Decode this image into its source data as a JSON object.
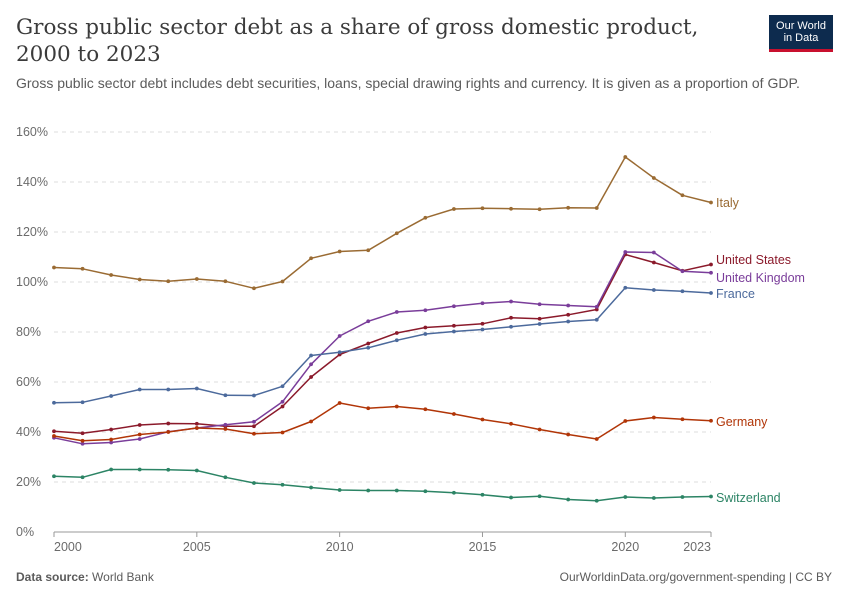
{
  "header": {
    "title": "Gross public sector debt as a share of gross domestic product, 2000 to 2023",
    "subtitle": "Gross public sector debt includes debt securities, loans, special drawing rights and currency. It is given as a proportion of GDP.",
    "logo_line1": "Our World",
    "logo_line2": "in Data"
  },
  "footer": {
    "source_label": "Data source:",
    "source_value": "World Bank",
    "url": "OurWorldinData.org/government-spending | CC BY"
  },
  "chart_data": {
    "type": "line",
    "title": "Gross public sector debt as a share of gross domestic product, 2000 to 2023",
    "xlim": [
      2000,
      2023
    ],
    "ylim": [
      0,
      160
    ],
    "x_ticks": [
      2000,
      2005,
      2010,
      2015,
      2020,
      2023
    ],
    "y_ticks": [
      0,
      20,
      40,
      60,
      80,
      100,
      120,
      140,
      160
    ],
    "y_tick_labels": [
      "0%",
      "20%",
      "40%",
      "60%",
      "80%",
      "100%",
      "120%",
      "140%",
      "160%"
    ],
    "grid": "horizontal dashed",
    "legend": "right-end labels",
    "x": [
      2000,
      2001,
      2002,
      2003,
      2004,
      2005,
      2006,
      2007,
      2008,
      2009,
      2010,
      2011,
      2012,
      2013,
      2014,
      2015,
      2016,
      2017,
      2018,
      2019,
      2020,
      2021,
      2022,
      2023
    ],
    "series": [
      {
        "name": "Italy",
        "color": "#9a6b33",
        "values": [
          105.8,
          105.3,
          102.8,
          101.0,
          100.3,
          101.2,
          100.3,
          97.5,
          100.2,
          109.5,
          112.2,
          112.7,
          119.5,
          125.7,
          129.2,
          129.5,
          129.3,
          129.1,
          129.7,
          129.6,
          150.0,
          141.6,
          134.7,
          131.8
        ]
      },
      {
        "name": "United States",
        "color": "#8b1a2b",
        "values": [
          40.3,
          39.5,
          41.0,
          42.8,
          43.4,
          43.3,
          42.3,
          42.3,
          50.2,
          62.0,
          71.0,
          75.4,
          79.6,
          81.8,
          82.5,
          83.3,
          85.7,
          85.3,
          86.9,
          89.0,
          111.0,
          107.8,
          104.5,
          107.0
        ]
      },
      {
        "name": "United Kingdom",
        "color": "#7a3d9a",
        "values": [
          37.7,
          35.3,
          35.8,
          37.2,
          40.1,
          41.6,
          42.9,
          44.1,
          52.1,
          67.1,
          78.4,
          84.3,
          88.0,
          88.7,
          90.3,
          91.5,
          92.2,
          91.1,
          90.6,
          90.1,
          112.0,
          111.8,
          104.3,
          103.7
        ]
      },
      {
        "name": "France",
        "color": "#4c6a9c",
        "values": [
          51.7,
          51.9,
          54.4,
          57.0,
          57.0,
          57.4,
          54.7,
          54.6,
          58.3,
          70.6,
          71.9,
          73.7,
          76.7,
          79.2,
          80.2,
          81.0,
          82.1,
          83.2,
          84.2,
          84.9,
          97.7,
          96.8,
          96.3,
          95.6
        ]
      },
      {
        "name": "Germany",
        "color": "#b13507",
        "values": [
          38.4,
          36.5,
          37.0,
          39.0,
          40.0,
          41.6,
          41.2,
          39.3,
          39.8,
          44.2,
          51.6,
          49.5,
          50.2,
          49.1,
          47.2,
          45.0,
          43.3,
          41.0,
          39.0,
          37.2,
          44.4,
          45.8,
          45.1,
          44.5
        ]
      },
      {
        "name": "Switzerland",
        "color": "#2c8465",
        "values": [
          22.3,
          21.9,
          25.0,
          25.0,
          24.9,
          24.6,
          21.9,
          19.6,
          18.9,
          17.8,
          16.8,
          16.6,
          16.6,
          16.3,
          15.7,
          14.9,
          13.8,
          14.3,
          13.0,
          12.5,
          14.0,
          13.6,
          14.0,
          14.2
        ]
      }
    ]
  }
}
